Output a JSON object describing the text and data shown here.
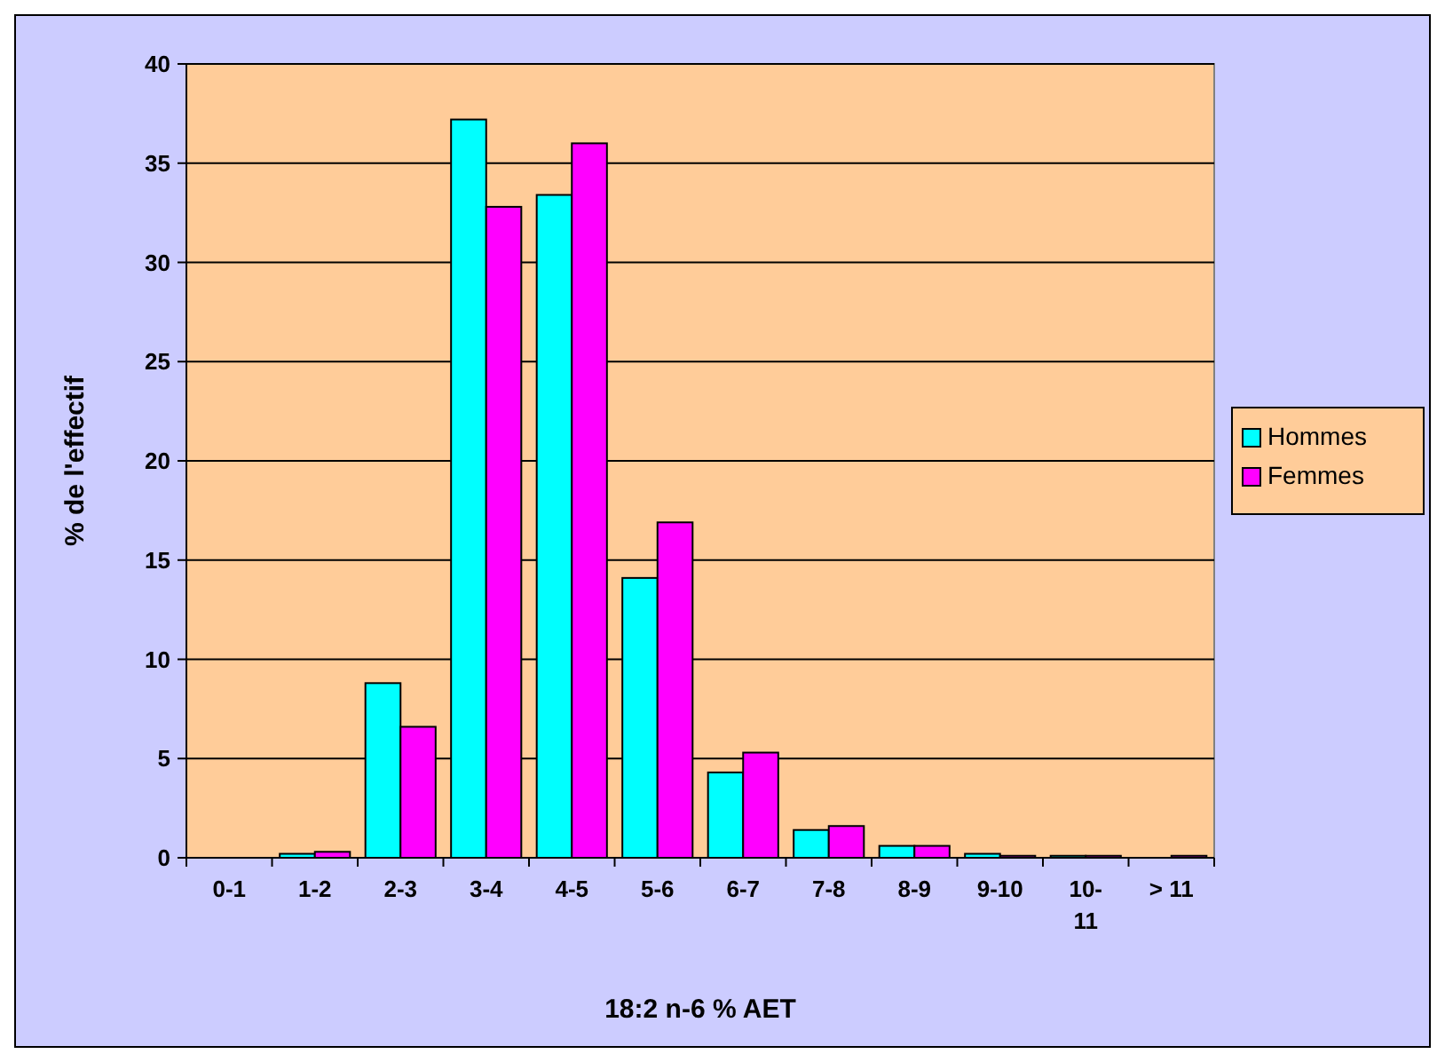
{
  "chart_data": {
    "type": "bar",
    "xlabel": "18:2 n-6 % AET",
    "ylabel": "% de l'effectif",
    "categories": [
      "0-1",
      "1-2",
      "2-3",
      "3-4",
      "4-5",
      "5-6",
      "6-7",
      "7-8",
      "8-9",
      "9-10",
      "10-11",
      "> 11"
    ],
    "series": [
      {
        "name": "Hommes",
        "color": "#00ffff",
        "values": [
          0,
          0.2,
          8.8,
          37.2,
          33.4,
          14.1,
          4.3,
          1.4,
          0.6,
          0.2,
          0.1,
          0
        ]
      },
      {
        "name": "Femmes",
        "color": "#ff00ff",
        "values": [
          0,
          0.3,
          6.6,
          32.8,
          36.0,
          16.9,
          5.3,
          1.6,
          0.6,
          0.1,
          0.1,
          0.1
        ]
      }
    ],
    "ylim": [
      0,
      40
    ],
    "yticks": [
      0,
      5,
      10,
      15,
      20,
      25,
      30,
      35,
      40
    ],
    "grid": "y",
    "legend": "right"
  }
}
